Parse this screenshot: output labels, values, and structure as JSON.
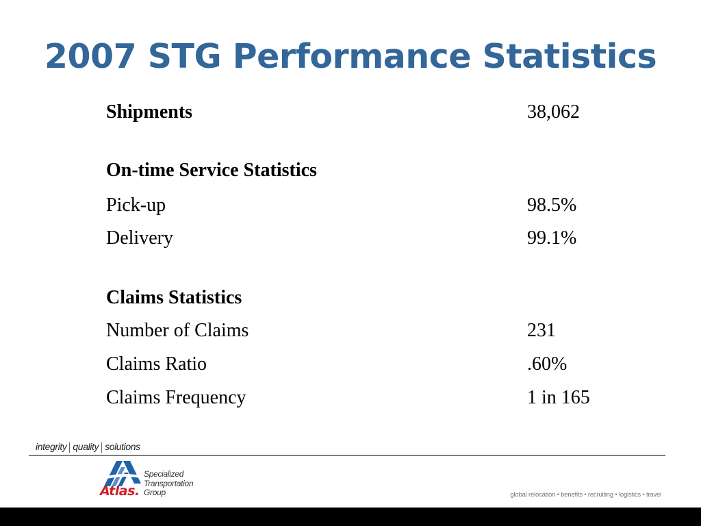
{
  "title": "2007 STG Performance Statistics",
  "stats": {
    "shipments": {
      "label": "Shipments",
      "value": "38,062"
    },
    "ontime_heading": "On-time Service Statistics",
    "pickup": {
      "label": "Pick-up",
      "value": "98.5%"
    },
    "delivery": {
      "label": "Delivery",
      "value": "99.1%"
    },
    "claims_heading": "Claims Statistics",
    "number_of_claims": {
      "label": "Number of Claims",
      "value": "231"
    },
    "claims_ratio": {
      "label": "Claims Ratio",
      "value": ".60%"
    },
    "claims_frequency": {
      "label": "Claims Frequency",
      "value": "1 in 165"
    }
  },
  "footer": {
    "tagline": [
      "integrity",
      "quality",
      "solutions"
    ],
    "logo": {
      "wordmark": "Atlas.",
      "line1": "Specialized",
      "line2": "Transportation",
      "line3": "Group"
    },
    "services": "global relocation • benefits • recruiting • logistics • travel"
  },
  "colors": {
    "title": "#336699",
    "logo_blue": "#1f63a8",
    "logo_red": "#cc1f2b",
    "rule": "#7f7f7f",
    "bottom_bar": "#000000"
  }
}
